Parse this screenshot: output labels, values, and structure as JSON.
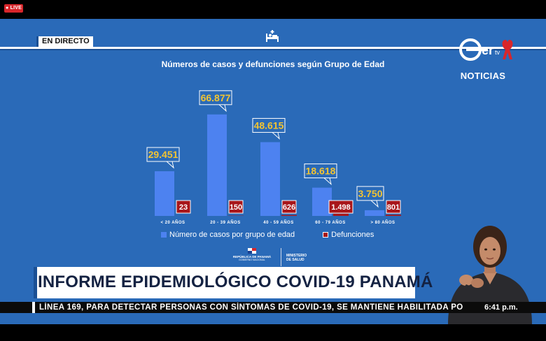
{
  "live_badge": "● LIVE",
  "live_tag": "EN DIRECTO",
  "channel": {
    "logo_text": "Ser tv",
    "section": "NOTICIAS"
  },
  "headline": "INFORME EPIDEMIOLÓGICO COVID-19 PANAMÁ",
  "ticker": {
    "text": "LÍNEA 169, PARA DETECTAR PERSONAS CON SÍNTOMAS DE COVID-19, SE MANTIENE HABILITADA PO",
    "time": "6:41 p.m."
  },
  "gov": {
    "left_line1": "REPÚBLICA DE PANAMÁ",
    "left_line2": "GOBIERNO NACIONAL",
    "right_line1": "MINISTERIO",
    "right_line2": "DE SALUD"
  },
  "colors": {
    "background": "#2a6ab8",
    "cases": "#4d82f0",
    "deaths": "#a8161a",
    "callout_border": "#ffffff",
    "callout_value": "#f3c431"
  },
  "chart_data": {
    "type": "bar",
    "title": "Números de casos y defunciones según Grupo de Edad",
    "categories": [
      "< 20 AÑOS",
      "20 - 39 AÑOS",
      "40 - 59 AÑOS",
      "60 - 79 AÑOS",
      "> 80 AÑOS"
    ],
    "series": [
      {
        "name": "Número de casos por grupo de  edad",
        "values": [
          29451,
          66877,
          48615,
          18618,
          3750
        ],
        "labels": [
          "29.451",
          "66.877",
          "48.615",
          "18.618",
          "3.750"
        ]
      },
      {
        "name": "Defunciones",
        "values": [
          23,
          150,
          626,
          1498,
          801
        ],
        "labels": [
          "23",
          "150",
          "626",
          "1.498",
          "801"
        ]
      }
    ],
    "ylim": [
      0,
      70000
    ],
    "grid": false,
    "legend": "bottom"
  }
}
